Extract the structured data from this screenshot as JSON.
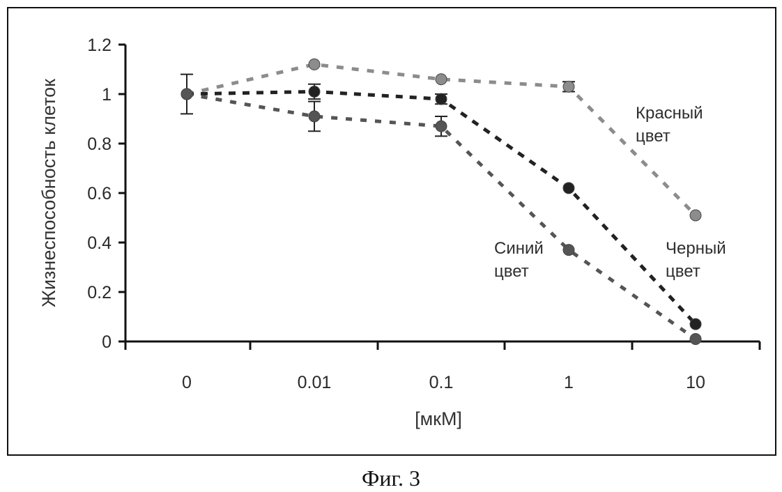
{
  "chart_data": {
    "type": "line",
    "categories": [
      "0",
      "0.01",
      "0.1",
      "1",
      "10"
    ],
    "ylabel": "Жизнеспособность клеток",
    "xlabel": "[мкМ]",
    "ylim": [
      0,
      1.2
    ],
    "yticks": [
      "0",
      "0.2",
      "0.4",
      "0.6",
      "0.8",
      "1",
      "1.2"
    ],
    "grid": false,
    "series": [
      {
        "annotation": [
          "Красный",
          "цвет"
        ],
        "color": "#8c8c8c",
        "values": [
          1.0,
          1.12,
          1.06,
          1.03,
          0.51
        ],
        "err": [
          0.08,
          0,
          0,
          0.02,
          0
        ]
      },
      {
        "annotation": [
          "Черный",
          "цвет"
        ],
        "color": "#222222",
        "values": [
          1.0,
          1.01,
          0.98,
          0.62,
          0.07
        ],
        "err": [
          0,
          0.03,
          0.02,
          0,
          0
        ]
      },
      {
        "annotation": [
          "Синий",
          "цвет"
        ],
        "color": "#555555",
        "values": [
          1.0,
          0.91,
          0.87,
          0.37,
          0.01
        ],
        "err": [
          0,
          0.06,
          0.04,
          0,
          0
        ]
      }
    ]
  },
  "caption": "Фиг. 3"
}
